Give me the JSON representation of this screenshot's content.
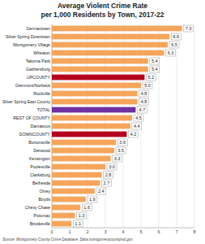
{
  "chart_data": {
    "type": "bar",
    "orientation": "horizontal",
    "title": "Average Violent Crime Rate",
    "subtitle": "per 1,000 Residents by Town, 2017-22",
    "source": "Source: Montgomery County Crime Database, Data.montgomerycountymd.gov",
    "categories": [
      "Germantown",
      "Silver Spring Downtown",
      "Montgomery Village",
      "Wheaton",
      "Takoma Park",
      "Gaithersburg",
      "UPCOUNTY",
      "Glenmont/Norbeck",
      "Rockville",
      "Silver Spring East County",
      "TOTAL",
      "REST OF COUNTY",
      "Damascus",
      "DOWNCOUNTY",
      "Burtonsville",
      "Derwood",
      "Kensington",
      "Poolesville",
      "Clarksburg",
      "Bethesda",
      "Olney",
      "Boyds",
      "Chevy Chase",
      "Potomac",
      "Brookeville"
    ],
    "values": [
      7.3,
      6.6,
      6.5,
      6.3,
      5.4,
      5.4,
      5.2,
      5.0,
      4.8,
      4.8,
      4.7,
      4.5,
      4.4,
      4.2,
      3.6,
      3.5,
      3.3,
      3.0,
      2.8,
      2.7,
      2.4,
      1.9,
      1.6,
      1.3,
      1.1
    ],
    "value_labels": [
      "7.3",
      "6.6",
      "6.5",
      "6.3",
      "5.4",
      "5.4",
      "5.2",
      "5.0",
      "4.8",
      "4.8",
      "4.7",
      "4.5",
      "4.4",
      "4.2",
      "3.6",
      "3.5",
      "3.3",
      "3.0",
      "2.8",
      "2.7",
      "2.4",
      "1.9",
      "1.6",
      "1.3",
      "1.1"
    ],
    "colors": [
      "#f5a55c",
      "#f5a55c",
      "#f5a55c",
      "#f5a55c",
      "#f5a55c",
      "#f5a55c",
      "#b4001e",
      "#f5a55c",
      "#f5a55c",
      "#f5a55c",
      "#7030a0",
      "#f5a55c",
      "#f5a55c",
      "#b4001e",
      "#f5a55c",
      "#f5a55c",
      "#f5a55c",
      "#f5a55c",
      "#f5a55c",
      "#f5a55c",
      "#f5a55c",
      "#f5a55c",
      "#f5a55c",
      "#f5a55c",
      "#f5a55c"
    ],
    "xlim": [
      0,
      8
    ],
    "xticks": [
      0,
      1,
      2,
      3,
      4,
      5,
      6,
      7,
      8
    ],
    "grid": true,
    "data_labels": true
  }
}
